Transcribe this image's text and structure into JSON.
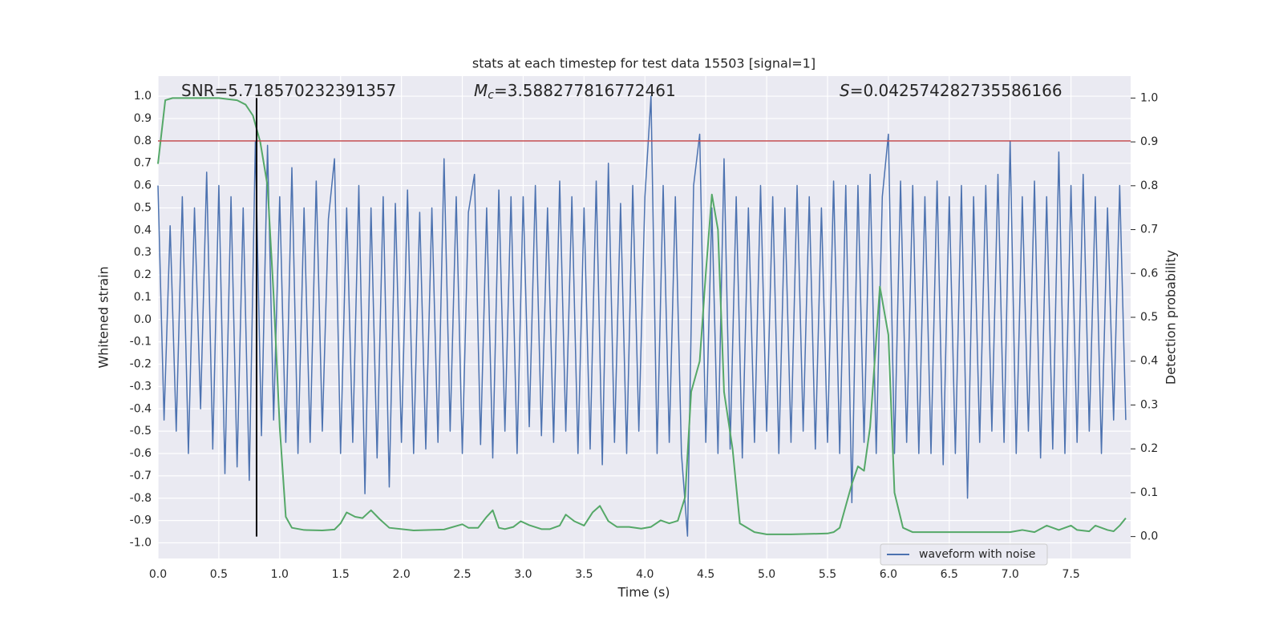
{
  "chart_data": {
    "type": "line",
    "title": "stats at each timestep for test data 15503 [signal=1]",
    "xlabel": "Time (s)",
    "ylabel": "Whitened strain",
    "y2label": "Detection probability",
    "annotations": [
      {
        "text": "SNR=5.718570232391357"
      },
      {
        "symbol": "M",
        "sub": "c",
        "text": "=3.588277816772461"
      },
      {
        "symbol": "S",
        "text": "=0.042574282735586166"
      }
    ],
    "xlim": [
      0,
      7.99
    ],
    "ylim": [
      -1.07,
      1.09
    ],
    "y2lim": [
      -0.05,
      1.05
    ],
    "xticks": [
      {
        "value": 0,
        "label": "0.0"
      },
      0.5,
      {
        "value": 1,
        "label": "1.0"
      },
      1.5,
      {
        "value": 2,
        "label": "2.0"
      },
      2.5,
      {
        "value": 3,
        "label": "3.0"
      },
      3.5,
      {
        "value": 4,
        "label": "4.0"
      },
      4.5,
      {
        "value": 5,
        "label": "5.0"
      },
      5.5,
      {
        "value": 6,
        "label": "6.0"
      },
      6.5,
      {
        "value": 7,
        "label": "7.0"
      },
      7.5
    ],
    "yticks": [
      {
        "value": -1,
        "label": "-1.0"
      },
      -0.9,
      -0.8,
      -0.7,
      -0.6,
      -0.5,
      -0.4,
      -0.3,
      -0.2,
      -0.1,
      {
        "value": 0,
        "label": "0.0"
      },
      0.1,
      0.2,
      0.3,
      0.4,
      0.5,
      0.6,
      0.7,
      0.8,
      0.9,
      {
        "value": 1,
        "label": "1.0"
      }
    ],
    "y2ticks": [
      {
        "value": 0,
        "label": "0.0"
      },
      0.1,
      0.2,
      0.3,
      0.4,
      0.5,
      0.6,
      0.7,
      0.8,
      0.9,
      {
        "value": 1,
        "label": "1.0"
      }
    ],
    "grid": true,
    "legend": "lower right",
    "hlines": [
      {
        "y": 0.8,
        "color": "#c44e52"
      }
    ],
    "vlines": [
      {
        "x": 0.81,
        "ymin": 0,
        "ymax": 1,
        "axis": "y2",
        "color": "#000000"
      }
    ],
    "series": [
      {
        "name": "waveform with noise",
        "color": "#4c72b0",
        "x": [
          0,
          0.05,
          0.1,
          0.15,
          0.2,
          0.25,
          0.3,
          0.35,
          0.4,
          0.45,
          0.5,
          0.55,
          0.6,
          0.65,
          0.7,
          0.75,
          0.8,
          0.85,
          0.9,
          0.95,
          1.0,
          1.05,
          1.1,
          1.15,
          1.2,
          1.25,
          1.3,
          1.35,
          1.4,
          1.45,
          1.5,
          1.55,
          1.6,
          1.65,
          1.7,
          1.75,
          1.8,
          1.85,
          1.9,
          1.95,
          2.0,
          2.05,
          2.1,
          2.15,
          2.2,
          2.25,
          2.3,
          2.35,
          2.4,
          2.45,
          2.5,
          2.55,
          2.6,
          2.65,
          2.7,
          2.75,
          2.8,
          2.85,
          2.9,
          2.95,
          3.0,
          3.05,
          3.1,
          3.15,
          3.2,
          3.25,
          3.3,
          3.35,
          3.4,
          3.45,
          3.5,
          3.55,
          3.6,
          3.65,
          3.7,
          3.75,
          3.8,
          3.85,
          3.9,
          3.95,
          4.0,
          4.05,
          4.1,
          4.15,
          4.2,
          4.25,
          4.3,
          4.35,
          4.4,
          4.45,
          4.5,
          4.55,
          4.6,
          4.65,
          4.7,
          4.75,
          4.8,
          4.85,
          4.9,
          4.95,
          5.0,
          5.05,
          5.1,
          5.15,
          5.2,
          5.25,
          5.3,
          5.35,
          5.4,
          5.45,
          5.5,
          5.55,
          5.6,
          5.65,
          5.7,
          5.75,
          5.8,
          5.85,
          5.9,
          5.95,
          6.0,
          6.05,
          6.1,
          6.15,
          6.2,
          6.25,
          6.3,
          6.35,
          6.4,
          6.45,
          6.5,
          6.55,
          6.6,
          6.65,
          6.7,
          6.75,
          6.8,
          6.85,
          6.9,
          6.95,
          7.0,
          7.05,
          7.1,
          7.15,
          7.2,
          7.25,
          7.3,
          7.35,
          7.4,
          7.45,
          7.5,
          7.55,
          7.6,
          7.65,
          7.7,
          7.75,
          7.8,
          7.85,
          7.9,
          7.95
        ],
        "values": [
          0.6,
          -0.45,
          0.42,
          -0.5,
          0.55,
          -0.6,
          0.5,
          -0.4,
          0.66,
          -0.58,
          0.6,
          -0.69,
          0.55,
          -0.66,
          0.5,
          -0.72,
          0.8,
          -0.52,
          0.78,
          -0.45,
          0.55,
          -0.55,
          0.68,
          -0.6,
          0.5,
          -0.55,
          0.62,
          -0.5,
          0.45,
          0.72,
          -0.6,
          0.5,
          -0.55,
          0.6,
          -0.78,
          0.5,
          -0.62,
          0.55,
          -0.75,
          0.52,
          -0.55,
          0.58,
          -0.6,
          0.48,
          -0.58,
          0.5,
          -0.55,
          0.72,
          -0.5,
          0.55,
          -0.6,
          0.48,
          0.65,
          -0.56,
          0.5,
          -0.62,
          0.58,
          -0.5,
          0.55,
          -0.6,
          0.55,
          -0.48,
          0.6,
          -0.52,
          0.5,
          -0.55,
          0.62,
          -0.5,
          0.55,
          -0.6,
          0.5,
          -0.58,
          0.62,
          -0.65,
          0.7,
          -0.55,
          0.52,
          -0.6,
          0.6,
          -0.5,
          0.55,
          1.0,
          -0.6,
          0.6,
          -0.55,
          0.55,
          -0.6,
          -0.97,
          0.6,
          0.83,
          -0.55,
          0.5,
          -0.6,
          0.72,
          -0.58,
          0.55,
          -0.62,
          0.5,
          -0.55,
          0.6,
          -0.5,
          0.55,
          -0.6,
          0.5,
          -0.55,
          0.6,
          -0.5,
          0.55,
          -0.58,
          0.5,
          -0.55,
          0.62,
          -0.6,
          0.6,
          -0.82,
          0.6,
          -0.55,
          0.65,
          -0.6,
          0.55,
          0.83,
          -0.6,
          0.62,
          -0.55,
          0.6,
          -0.6,
          0.55,
          -0.6,
          0.62,
          -0.65,
          0.55,
          -0.6,
          0.6,
          -0.8,
          0.55,
          -0.55,
          0.6,
          -0.5,
          0.65,
          -0.55,
          0.8,
          -0.6,
          0.55,
          -0.5,
          0.62,
          -0.62,
          0.55,
          -0.58,
          0.75,
          -0.6,
          0.6,
          -0.55,
          0.65,
          -0.5,
          0.55,
          -0.6,
          0.5,
          -0.45,
          0.6,
          -0.45
        ]
      },
      {
        "color": "#55a868",
        "axis": "y2",
        "x": [
          0,
          0.06,
          0.12,
          0.5,
          0.65,
          0.72,
          0.78,
          0.84,
          0.9,
          0.95,
          1.0,
          1.05,
          1.1,
          1.2,
          1.35,
          1.45,
          1.5,
          1.55,
          1.62,
          1.68,
          1.75,
          1.82,
          1.9,
          2.1,
          2.35,
          2.5,
          2.55,
          2.63,
          2.7,
          2.75,
          2.8,
          2.85,
          2.92,
          2.98,
          3.05,
          3.15,
          3.22,
          3.3,
          3.35,
          3.42,
          3.5,
          3.57,
          3.63,
          3.7,
          3.77,
          3.87,
          3.97,
          4.05,
          4.13,
          4.2,
          4.27,
          4.33,
          4.38,
          4.45,
          4.5,
          4.55,
          4.6,
          4.65,
          4.72,
          4.78,
          4.9,
          5.0,
          5.2,
          5.5,
          5.55,
          5.6,
          5.7,
          5.75,
          5.8,
          5.85,
          5.93,
          6.0,
          6.05,
          6.12,
          6.2,
          6.35,
          7.0,
          7.1,
          7.2,
          7.3,
          7.4,
          7.5,
          7.55,
          7.65,
          7.7,
          7.8,
          7.85,
          7.9,
          7.95
        ],
        "values": [
          0.85,
          0.995,
          1.0,
          1.0,
          0.995,
          0.985,
          0.96,
          0.9,
          0.8,
          0.55,
          0.25,
          0.045,
          0.02,
          0.015,
          0.014,
          0.016,
          0.03,
          0.055,
          0.045,
          0.042,
          0.06,
          0.04,
          0.02,
          0.014,
          0.016,
          0.028,
          0.02,
          0.02,
          0.045,
          0.06,
          0.02,
          0.017,
          0.022,
          0.035,
          0.026,
          0.017,
          0.017,
          0.025,
          0.05,
          0.035,
          0.025,
          0.055,
          0.07,
          0.035,
          0.022,
          0.022,
          0.018,
          0.022,
          0.037,
          0.03,
          0.036,
          0.09,
          0.33,
          0.4,
          0.6,
          0.78,
          0.7,
          0.33,
          0.2,
          0.03,
          0.01,
          0.005,
          0.005,
          0.007,
          0.01,
          0.02,
          0.12,
          0.16,
          0.15,
          0.25,
          0.57,
          0.46,
          0.1,
          0.02,
          0.01,
          0.01,
          0.01,
          0.015,
          0.01,
          0.025,
          0.015,
          0.025,
          0.015,
          0.012,
          0.025,
          0.015,
          0.012,
          0.025,
          0.042
        ]
      }
    ]
  }
}
